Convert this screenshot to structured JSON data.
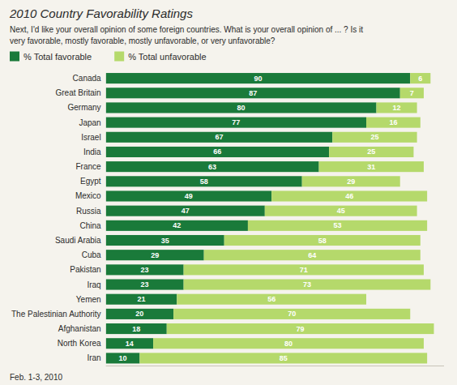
{
  "chart_data": {
    "type": "bar",
    "orientation": "horizontal",
    "stacked": true,
    "title": "2010 Country Favorability Ratings",
    "subtitle": "Next, I'd like your overall opinion of some foreign countries. What is your overall opinion of ... ? Is it\nvery favorable, mostly favorable, mostly unfavorable, or very unfavorable?",
    "annotations": [
      "Feb. 1-3, 2010"
    ],
    "categories": [
      "Canada",
      "Great Britain",
      "Germany",
      "Japan",
      "Israel",
      "India",
      "France",
      "Egypt",
      "Mexico",
      "Russia",
      "China",
      "Saudi Arabia",
      "Cuba",
      "Pakistan",
      "Iraq",
      "Yemen",
      "The Palestinian Authority",
      "Afghanistan",
      "North Korea",
      "Iran"
    ],
    "series": [
      {
        "name": "% Total favorable",
        "color": "#1a7a3a",
        "values": [
          90,
          87,
          80,
          77,
          67,
          66,
          63,
          58,
          49,
          47,
          42,
          35,
          29,
          23,
          23,
          21,
          20,
          18,
          14,
          10
        ]
      },
      {
        "name": "% Total unfavorable",
        "color": "#b5d96b",
        "values": [
          6,
          7,
          12,
          16,
          25,
          25,
          31,
          29,
          46,
          45,
          53,
          58,
          64,
          71,
          73,
          56,
          70,
          79,
          80,
          85
        ]
      }
    ],
    "xlim": [
      0,
      100
    ],
    "data_labels": true,
    "tick_labels": "y",
    "grid": false,
    "legend": "top"
  }
}
